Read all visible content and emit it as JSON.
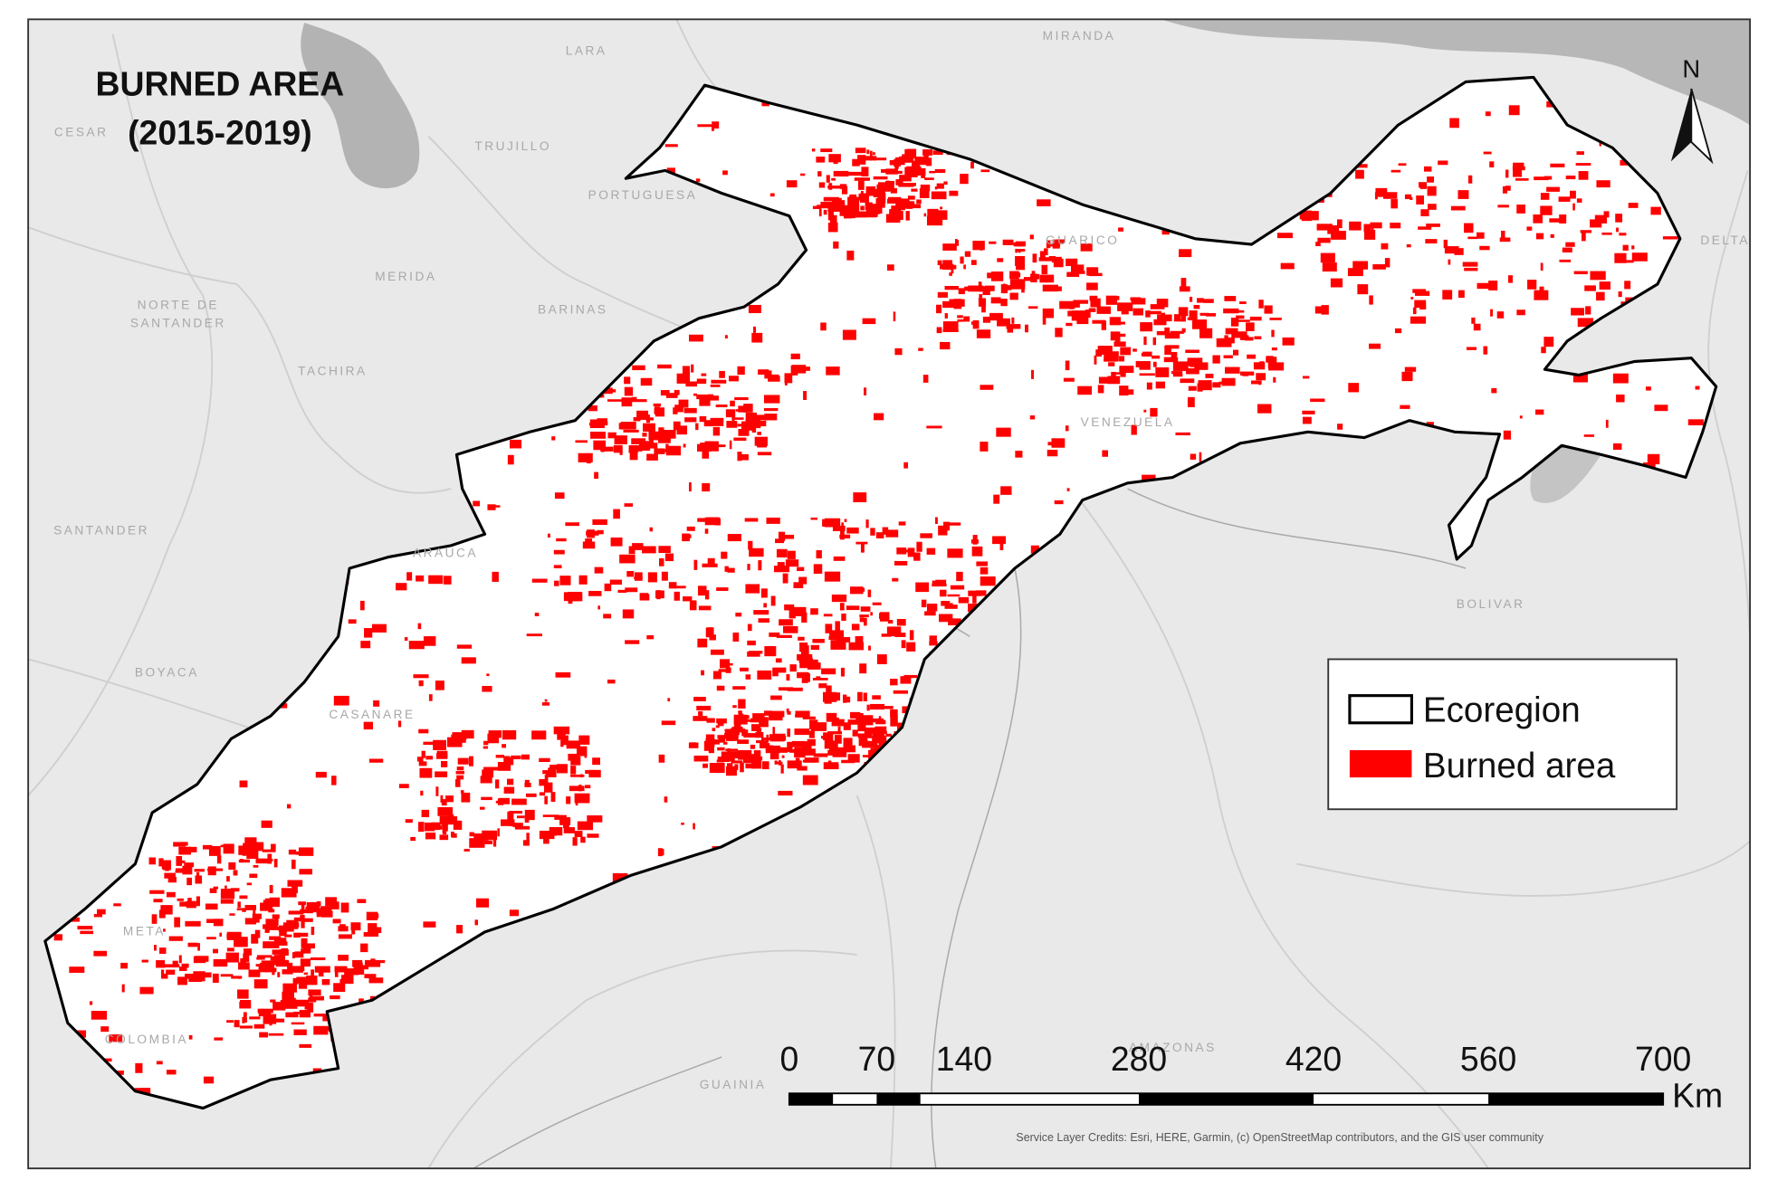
{
  "title": "BURNED AREA",
  "subtitle": "(2015-2019)",
  "north": "N",
  "legend": {
    "items": [
      "Ecoregion",
      "Burned area"
    ]
  },
  "scale_bar": {
    "ticks": [
      0,
      70,
      140,
      280,
      420,
      560,
      700
    ],
    "unit": "Km"
  },
  "attribution": "Service Layer Credits: Esri, HERE, Garmin, (c) OpenStreetMap contributors, and the GIS user community",
  "place_labels": [
    "LARA",
    "MIRANDA",
    "TRUJILLO",
    "MERIDA",
    "BARINAS",
    "NORTE DE",
    "SANTANDER",
    "TACHIRA",
    "SANTANDER",
    "ARAUCA",
    "BOYACA",
    "CASANARE",
    "VENEZUELA",
    "BOLIVAR",
    "META",
    "COLOMBIA",
    "GUAINIA",
    "AMAZONAS",
    "CESAR",
    "PORTUGUESA",
    "GUARICO",
    "DELTA"
  ]
}
